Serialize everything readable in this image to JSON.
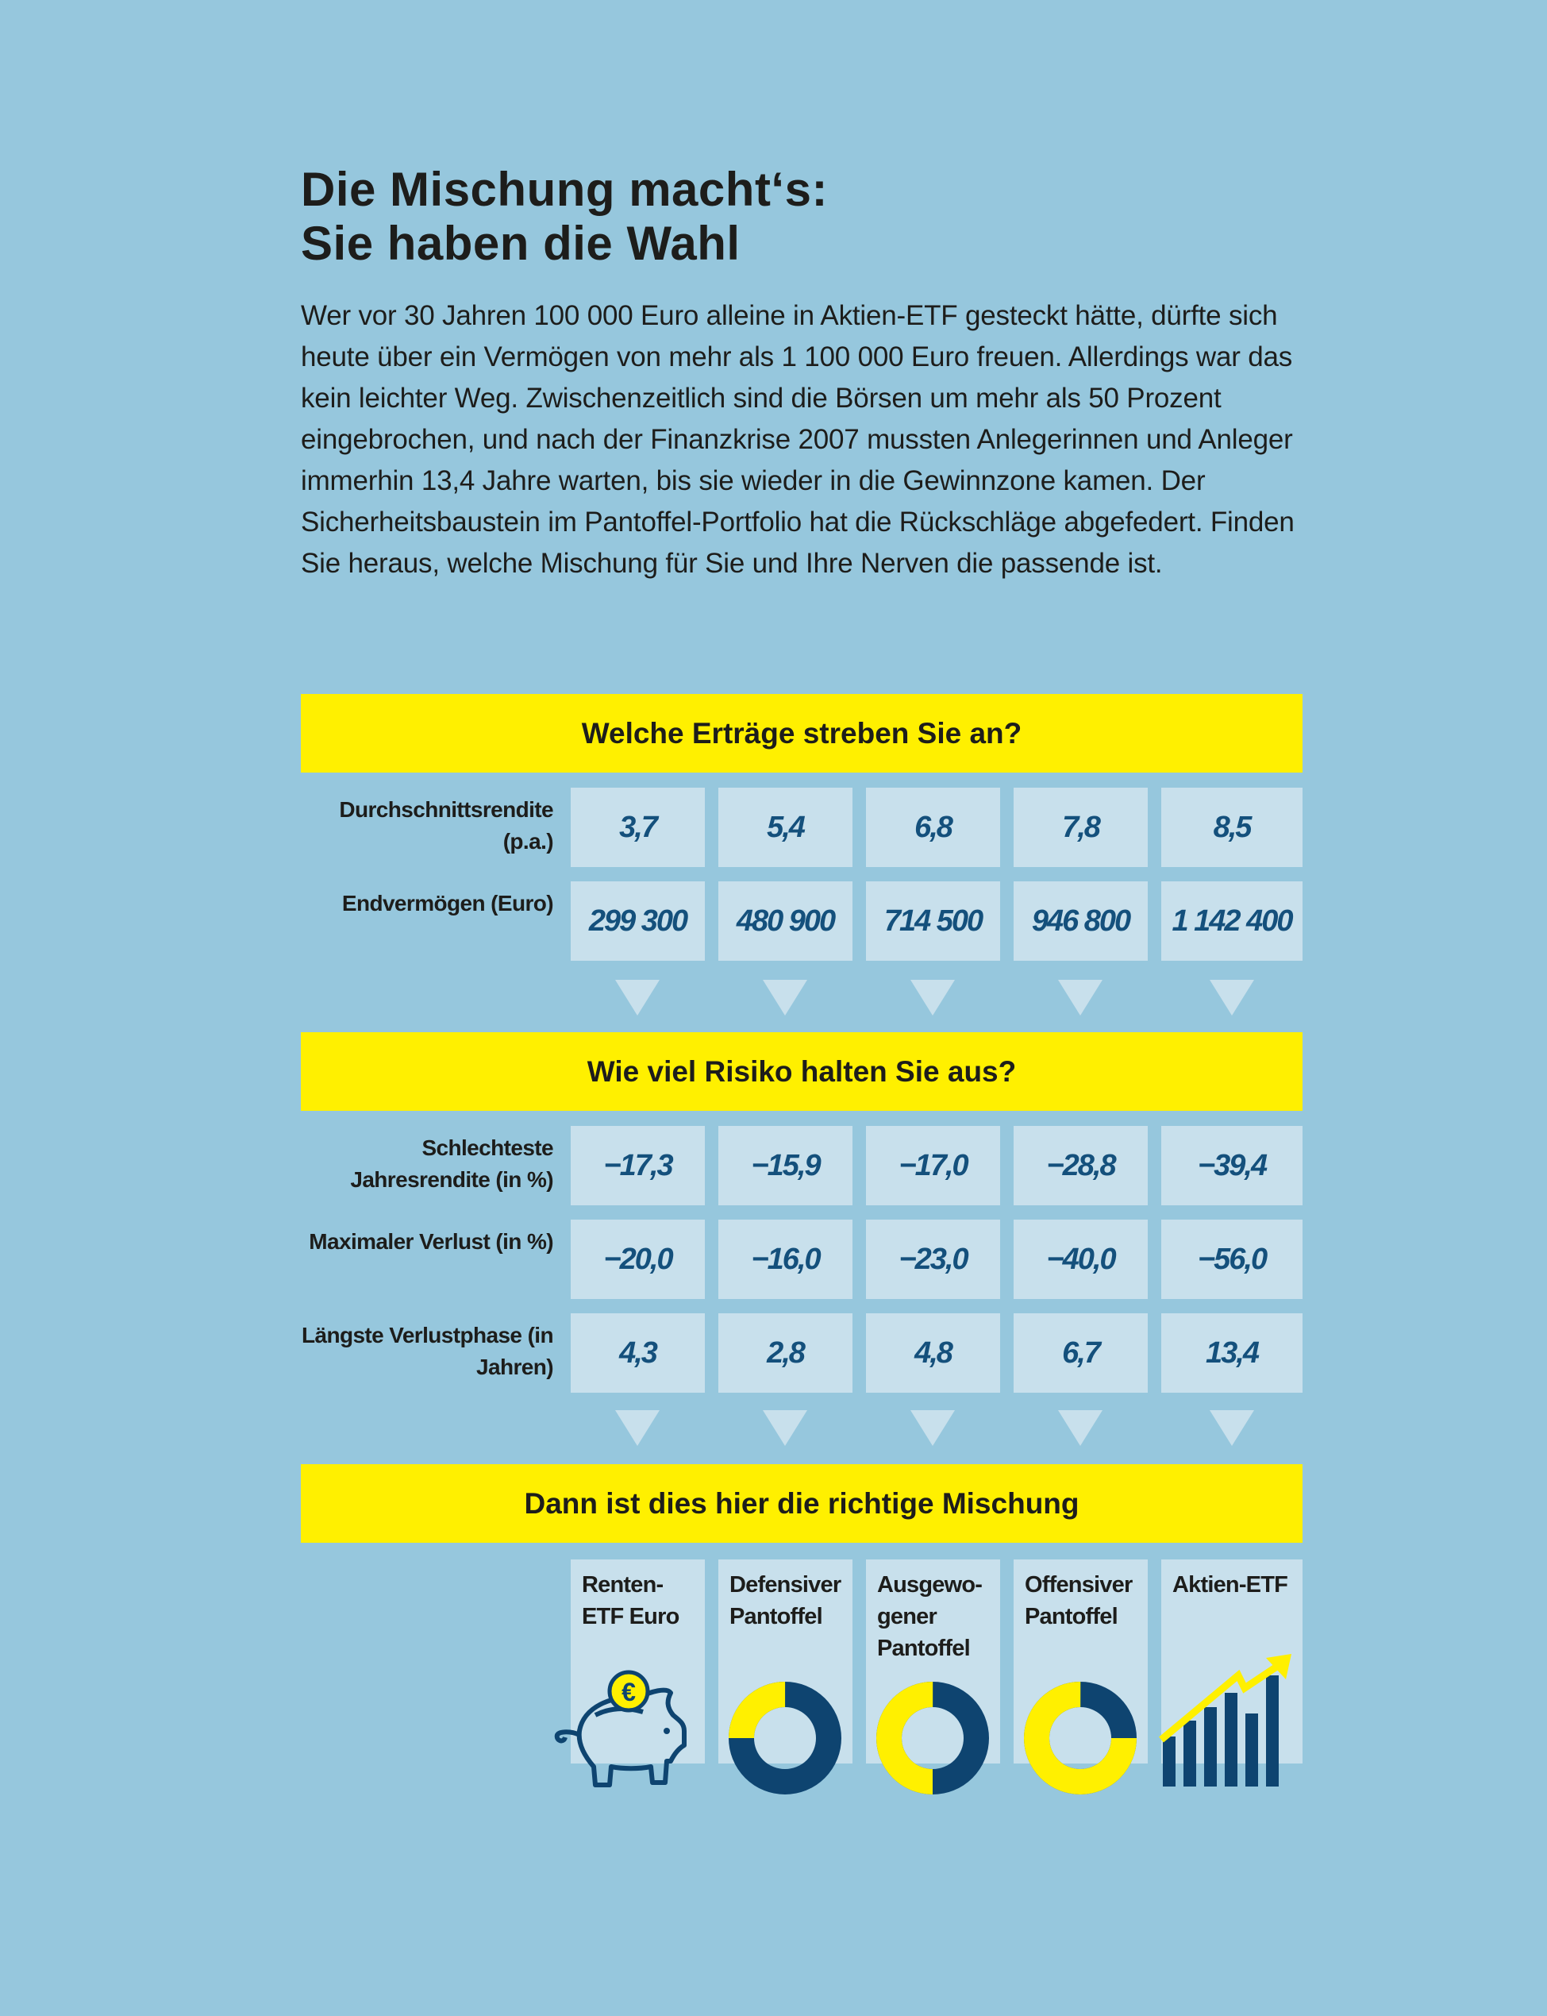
{
  "title": [
    "Die Mischung macht‘s:",
    "Sie haben die Wahl"
  ],
  "intro": "Wer vor 30 Jahren 100 000 Euro alleine in Aktien-ETF gesteckt hätte, dürfte sich heute über ein Vermögen von mehr als 1 100 000 Euro freuen. Allerdings war das kein leichter Weg. Zwischenzeitlich sind die Börsen um mehr als 50 Prozent eingebrochen, und nach der Finanzkrise 2007 mussten Anlegerinnen und Anleger immerhin 13,4 Jahre warten, bis sie wieder in die Gewinnzone kamen. Der Sicherheitsbaustein im Pantoffel-Portfolio hat die Rückschläge abgefedert. Finden Sie heraus, welche Mischung für Sie und Ihre Nerven die passende ist.",
  "sections": {
    "returns": {
      "heading": "Welche Erträge streben Sie an?",
      "rows": [
        {
          "label": "Durchschnittsrendite (p.a.)",
          "values": [
            "3,7",
            "5,4",
            "6,8",
            "7,8",
            "8,5"
          ]
        },
        {
          "label": "Endvermögen (Euro)",
          "values": [
            "299 300",
            "480 900",
            "714 500",
            "946 800",
            "1 142 400"
          ]
        }
      ]
    },
    "risk": {
      "heading": "Wie viel Risiko halten Sie aus?",
      "rows": [
        {
          "label": "Schlechteste Jahresrendite (in %)",
          "values": [
            "−17,3",
            "−15,9",
            "−17,0",
            "−28,8",
            "−39,4"
          ]
        },
        {
          "label": "Maximaler Verlust (in %)",
          "values": [
            "−20,0",
            "−16,0",
            "−23,0",
            "−40,0",
            "−56,0"
          ]
        },
        {
          "label": "Längste Verlustphase (in Jahren)",
          "values": [
            "4,3",
            "2,8",
            "4,8",
            "6,7",
            "13,4"
          ]
        }
      ]
    },
    "mix": {
      "heading": "Dann ist dies hier die richtige Mischung",
      "portfolios": [
        {
          "name": "Renten-ETF Euro",
          "icon": "piggy-bank-euro-icon"
        },
        {
          "name": "Defensiver Pantoffel",
          "icon": "donut-icon",
          "yellow_share": 0.25
        },
        {
          "name": "Ausgewo-gener Pantoffel",
          "icon": "donut-icon",
          "yellow_share": 0.5
        },
        {
          "name": "Offensiver Pantoffel",
          "icon": "donut-icon",
          "yellow_share": 0.75
        },
        {
          "name": "Aktien-ETF",
          "icon": "rising-bar-chart-icon"
        }
      ]
    }
  },
  "colors": {
    "background": "#96c7dd",
    "cell": "#c8e0ec",
    "accent": "#fff000",
    "dark_blue": "#0e4470",
    "number": "#14507c"
  }
}
